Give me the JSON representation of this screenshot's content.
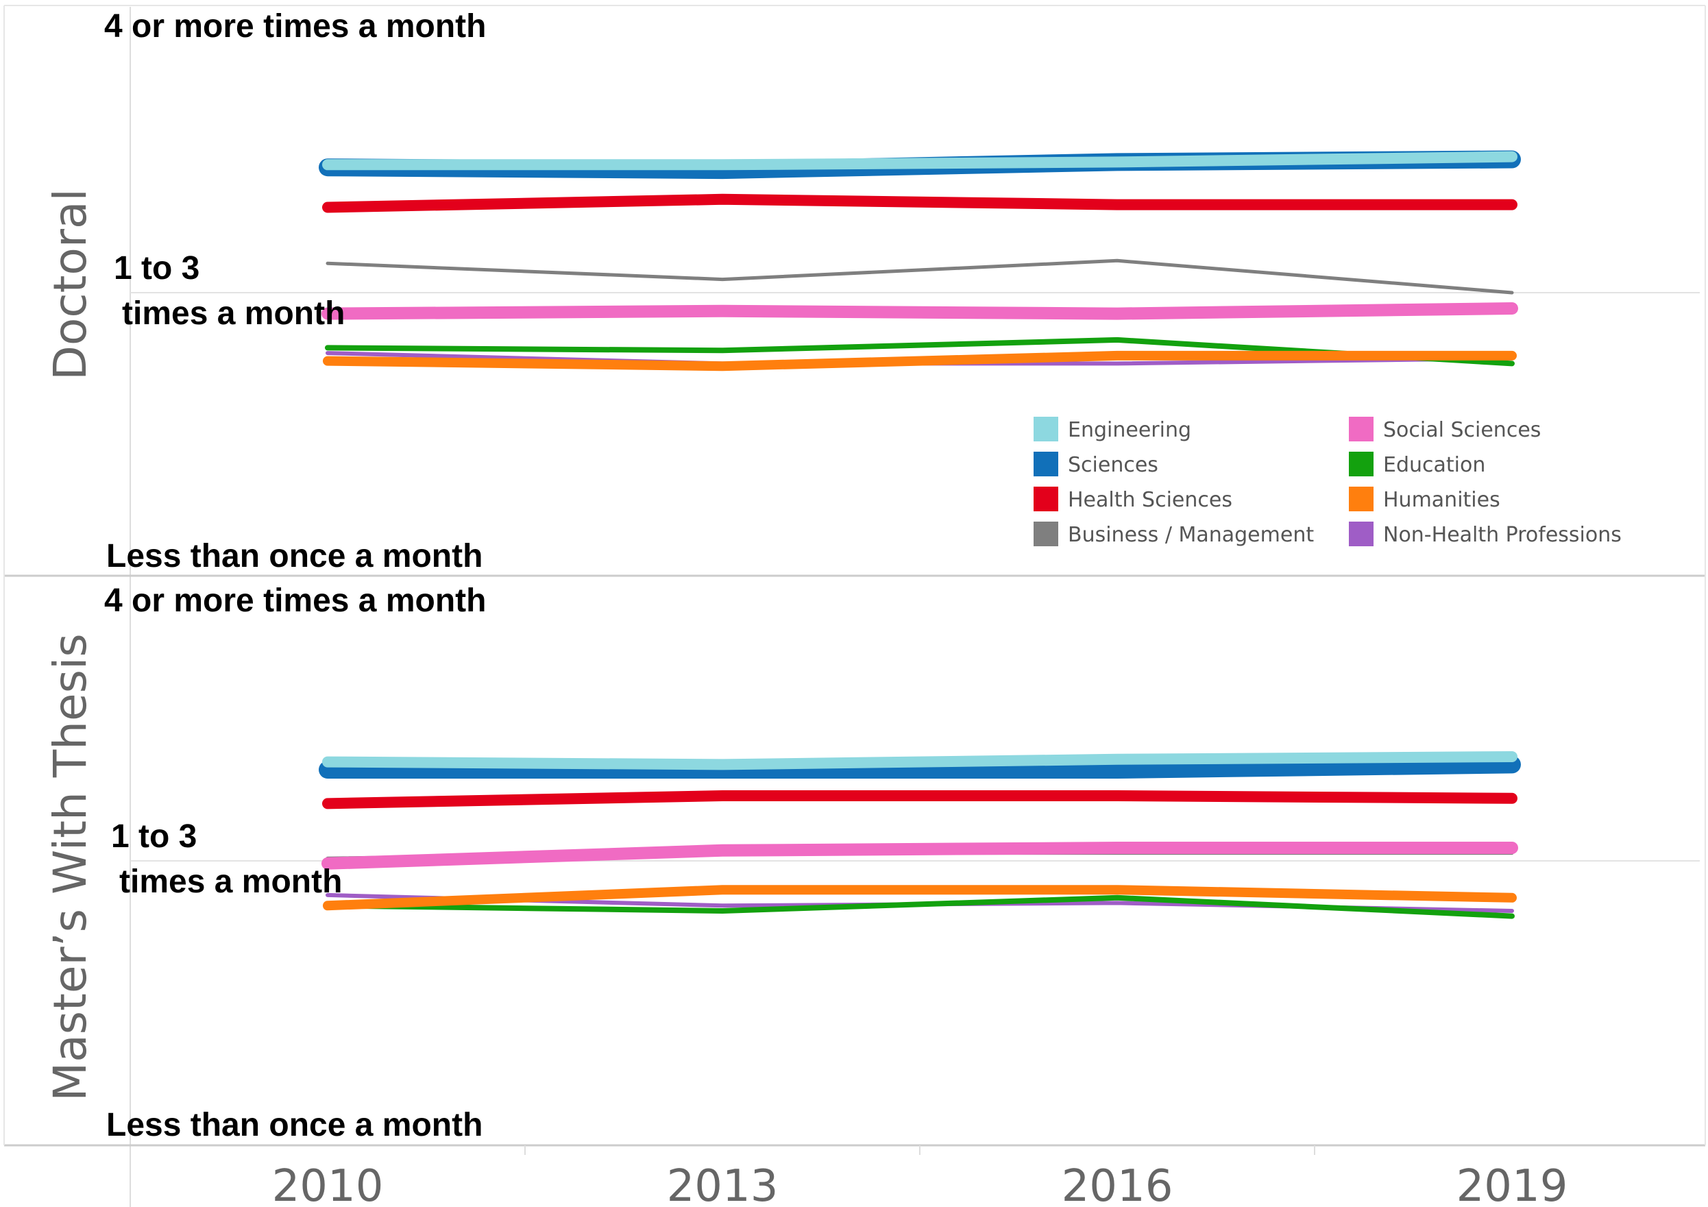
{
  "chart_data": {
    "type": "line",
    "x": [
      "2010",
      "2013",
      "2016",
      "2019"
    ],
    "y_levels": [
      "Less than once a month",
      "1 to 3 times a month",
      "4 or more times a month"
    ],
    "ylim": [
      1,
      3
    ],
    "grid": "horizontal at middle level",
    "legend_position": "lower-right of top panel",
    "panels": [
      {
        "title": "Doctoral",
        "series": [
          {
            "name": "Engineering",
            "color": "#8dd8e0",
            "values": [
              2.48,
              2.48,
              2.49,
              2.51
            ]
          },
          {
            "name": "Sciences",
            "color": "#1170b9",
            "values": [
              2.47,
              2.46,
              2.49,
              2.5
            ]
          },
          {
            "name": "Health Sciences",
            "color": "#e3001b",
            "values": [
              2.32,
              2.35,
              2.33,
              2.33
            ]
          },
          {
            "name": "Business / Management",
            "color": "#7f7f7f",
            "values": [
              2.11,
              2.05,
              2.12,
              2.0
            ]
          },
          {
            "name": "Social Sciences",
            "color": "#f06bc3",
            "values": [
              1.92,
              1.93,
              1.92,
              1.94
            ]
          },
          {
            "name": "Education",
            "color": "#13a10e",
            "values": [
              1.79,
              1.78,
              1.82,
              1.73
            ]
          },
          {
            "name": "Humanities",
            "color": "#ff7f0e",
            "values": [
              1.74,
              1.72,
              1.76,
              1.76
            ]
          },
          {
            "name": "Non-Health Professions",
            "color": "#9f5dc6",
            "values": [
              1.77,
              1.73,
              1.73,
              1.75
            ]
          }
        ]
      },
      {
        "title": "Master’s With Thesis",
        "series": [
          {
            "name": "Engineering",
            "color": "#8dd8e0",
            "values": [
              2.38,
              2.37,
              2.39,
              2.4
            ]
          },
          {
            "name": "Sciences",
            "color": "#1170b9",
            "values": [
              2.35,
              2.35,
              2.35,
              2.37
            ]
          },
          {
            "name": "Health Sciences",
            "color": "#e3001b",
            "values": [
              2.22,
              2.25,
              2.25,
              2.24
            ]
          },
          {
            "name": "Business / Management",
            "color": "#7f7f7f",
            "values": [
              2.01,
              2.03,
              2.03,
              2.03
            ]
          },
          {
            "name": "Social Sciences",
            "color": "#f06bc3",
            "values": [
              1.99,
              2.04,
              2.05,
              2.05
            ]
          },
          {
            "name": "Education",
            "color": "#13a10e",
            "values": [
              1.83,
              1.81,
              1.86,
              1.79
            ]
          },
          {
            "name": "Humanities",
            "color": "#ff7f0e",
            "values": [
              1.83,
              1.89,
              1.89,
              1.86
            ]
          },
          {
            "name": "Non-Health Professions",
            "color": "#9f5dc6",
            "values": [
              1.87,
              1.83,
              1.84,
              1.81
            ]
          }
        ]
      }
    ],
    "legend": [
      {
        "name": "Engineering",
        "color": "#8dd8e0"
      },
      {
        "name": "Sciences",
        "color": "#1170b9"
      },
      {
        "name": "Health Sciences",
        "color": "#e3001b"
      },
      {
        "name": "Business / Management",
        "color": "#7f7f7f"
      },
      {
        "name": "Social Sciences",
        "color": "#f06bc3"
      },
      {
        "name": "Education",
        "color": "#13a10e"
      },
      {
        "name": "Humanities",
        "color": "#ff7f0e"
      },
      {
        "name": "Non-Health Professions",
        "color": "#9f5dc6"
      }
    ]
  }
}
